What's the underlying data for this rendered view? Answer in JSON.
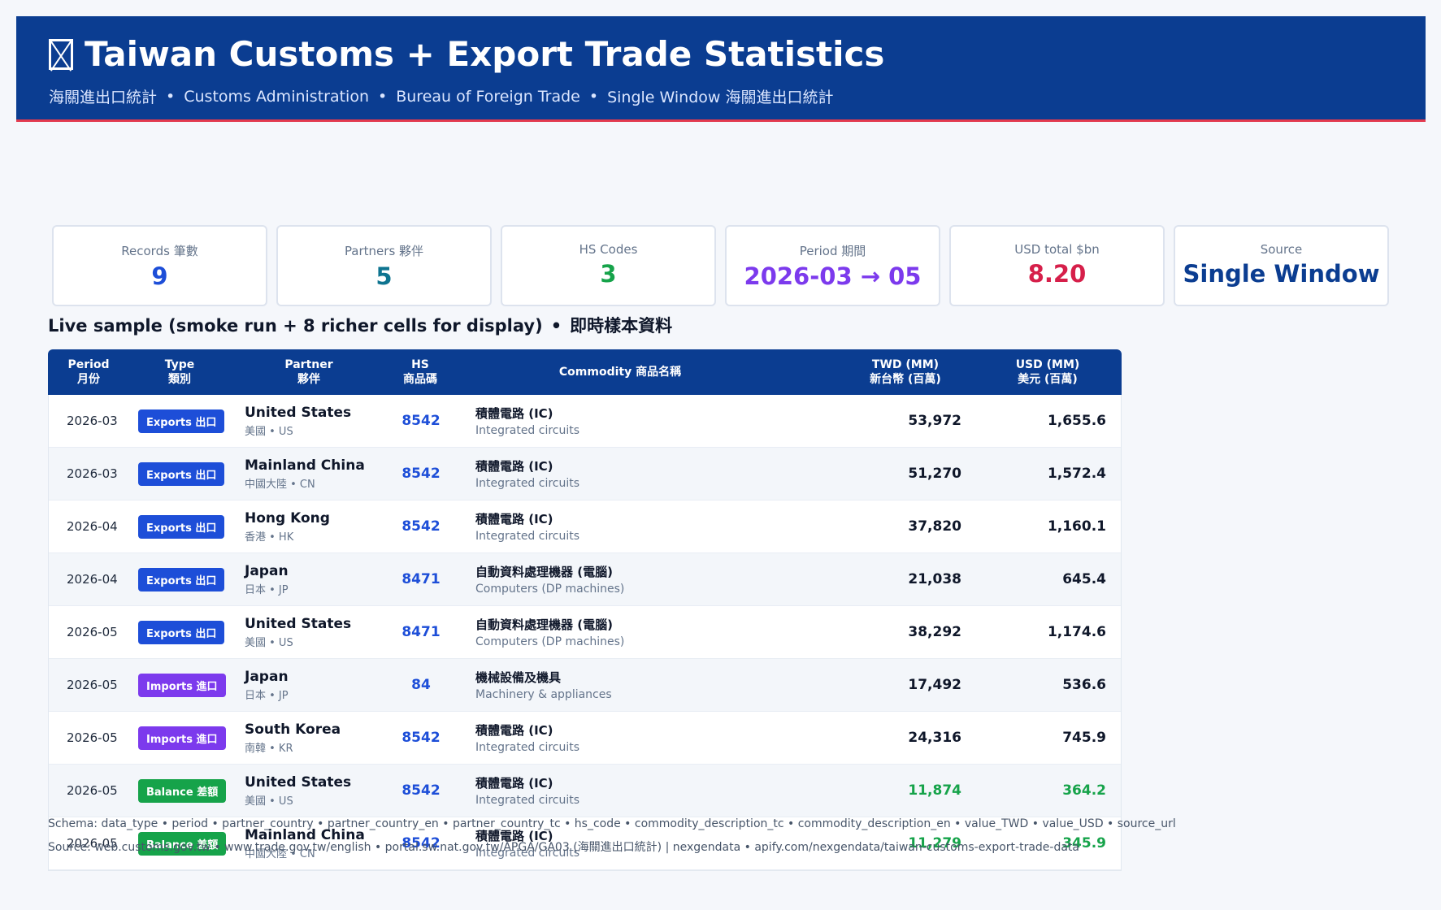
{
  "header": {
    "title": "Taiwan Customs + Export Trade Statistics",
    "icon": "flag-icon",
    "subtitle_parts": [
      "海關進出口統計",
      "Customs Administration",
      "Bureau of Foreign Trade",
      "Single Window 海關進出口統計"
    ],
    "separator": "•"
  },
  "cards": [
    {
      "label": "Records 筆數",
      "value": "9",
      "color": "#1d4ed8"
    },
    {
      "label": "Partners 夥伴",
      "value": "5",
      "color": "#0e7490"
    },
    {
      "label": "HS Codes",
      "value": "3",
      "color": "#16a34a"
    },
    {
      "label": "Period 期間",
      "value": "2026-03 → 05",
      "color": "#7c3aed"
    },
    {
      "label": "USD total $bn",
      "value": "8.20",
      "color": "#d61f4a"
    },
    {
      "label": "Source",
      "value": "Single Window",
      "color": "#0b3d91"
    }
  ],
  "section": {
    "title": "Live sample (smoke run + 8 richer cells for display)",
    "separator": "•",
    "title_tc": "即時樣本資料"
  },
  "table": {
    "headers": {
      "period": [
        "Period",
        "月份"
      ],
      "type": [
        "Type",
        "類別"
      ],
      "partner": [
        "Partner",
        "夥伴"
      ],
      "hs": [
        "HS",
        "商品碼"
      ],
      "commodity": "Commodity 商品名稱",
      "twd": [
        "TWD (MM)",
        "新台幣 (百萬)"
      ],
      "usd": [
        "USD (MM)",
        "美元 (百萬)"
      ]
    },
    "rows": [
      {
        "period": "2026-03",
        "type": "Exports 出口",
        "type_color": "#1d4ed8",
        "partner": "United States",
        "partner_sub": "美國 • US",
        "hs": "8542",
        "commodity_tc": "積體電路 (IC)",
        "commodity_en": "Integrated circuits",
        "twd": "53,972",
        "usd": "1,655.6",
        "value_color": "#0f172a"
      },
      {
        "period": "2026-03",
        "type": "Exports 出口",
        "type_color": "#1d4ed8",
        "partner": "Mainland China",
        "partner_sub": "中國大陸 • CN",
        "hs": "8542",
        "commodity_tc": "積體電路 (IC)",
        "commodity_en": "Integrated circuits",
        "twd": "51,270",
        "usd": "1,572.4",
        "value_color": "#0f172a"
      },
      {
        "period": "2026-04",
        "type": "Exports 出口",
        "type_color": "#1d4ed8",
        "partner": "Hong Kong",
        "partner_sub": "香港 • HK",
        "hs": "8542",
        "commodity_tc": "積體電路 (IC)",
        "commodity_en": "Integrated circuits",
        "twd": "37,820",
        "usd": "1,160.1",
        "value_color": "#0f172a"
      },
      {
        "period": "2026-04",
        "type": "Exports 出口",
        "type_color": "#1d4ed8",
        "partner": "Japan",
        "partner_sub": "日本 • JP",
        "hs": "8471",
        "commodity_tc": "自動資料處理機器 (電腦)",
        "commodity_en": "Computers (DP machines)",
        "twd": "21,038",
        "usd": "645.4",
        "value_color": "#0f172a"
      },
      {
        "period": "2026-05",
        "type": "Exports 出口",
        "type_color": "#1d4ed8",
        "partner": "United States",
        "partner_sub": "美國 • US",
        "hs": "8471",
        "commodity_tc": "自動資料處理機器 (電腦)",
        "commodity_en": "Computers (DP machines)",
        "twd": "38,292",
        "usd": "1,174.6",
        "value_color": "#0f172a"
      },
      {
        "period": "2026-05",
        "type": "Imports 進口",
        "type_color": "#7c3aed",
        "partner": "Japan",
        "partner_sub": "日本 • JP",
        "hs": "84",
        "commodity_tc": "機械設備及機具",
        "commodity_en": "Machinery & appliances",
        "twd": "17,492",
        "usd": "536.6",
        "value_color": "#0f172a"
      },
      {
        "period": "2026-05",
        "type": "Imports 進口",
        "type_color": "#7c3aed",
        "partner": "South Korea",
        "partner_sub": "南韓 • KR",
        "hs": "8542",
        "commodity_tc": "積體電路 (IC)",
        "commodity_en": "Integrated circuits",
        "twd": "24,316",
        "usd": "745.9",
        "value_color": "#0f172a"
      },
      {
        "period": "2026-05",
        "type": "Balance 差額",
        "type_color": "#16a34a",
        "partner": "United States",
        "partner_sub": "美國 • US",
        "hs": "8542",
        "commodity_tc": "積體電路 (IC)",
        "commodity_en": "Integrated circuits",
        "twd": "11,874",
        "usd": "364.2",
        "value_color": "#16a34a"
      },
      {
        "period": "2026-05",
        "type": "Balance 差額",
        "type_color": "#16a34a",
        "partner": "Mainland China",
        "partner_sub": "中國大陸 • CN",
        "hs": "8542",
        "commodity_tc": "積體電路 (IC)",
        "commodity_en": "Integrated circuits",
        "twd": "11,279",
        "usd": "345.9",
        "value_color": "#16a34a"
      }
    ]
  },
  "footer": {
    "schema": "Schema: data_type • period • partner_country • partner_country_en • partner_country_tc • hs_code • commodity_description_tc • commodity_description_en • value_TWD • value_USD • source_url",
    "source": "Source: web.customs.gov.tw • www.trade.gov.tw/english • portal.sw.nat.gov.tw/APGA/GA03 (海關進出口統計) | nexgendata • apify.com/nexgendata/taiwan-customs-export-trade-data"
  }
}
